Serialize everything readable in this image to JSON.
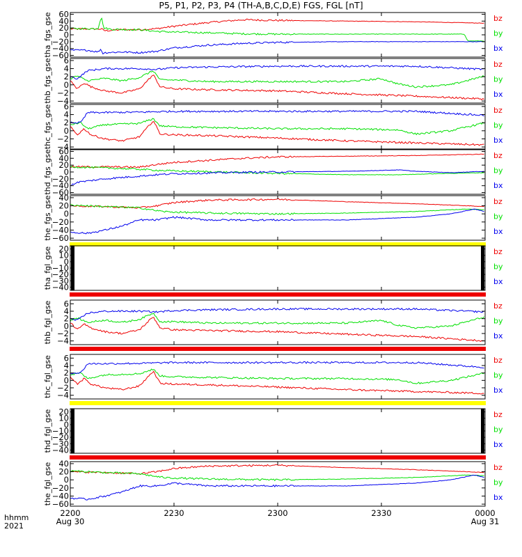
{
  "title": "P5, P1, P2, P3, P4 (TH-A,B,C,D,E) FGS, FGL [nT]",
  "x_axis": {
    "row_label_top": "hhmm",
    "row_label_bottom": "2021",
    "ticks": [
      {
        "t": 0,
        "label": "2200",
        "sub": "Aug 30"
      },
      {
        "t": 30,
        "label": "2230",
        "sub": ""
      },
      {
        "t": 60,
        "label": "2300",
        "sub": ""
      },
      {
        "t": 90,
        "label": "2330",
        "sub": ""
      },
      {
        "t": 120,
        "label": "0000",
        "sub": "Aug 31"
      }
    ],
    "range_minutes": [
      0,
      120
    ]
  },
  "colors": {
    "bx": "#0000ee",
    "by": "#00e000",
    "bz": "#ee0000",
    "flag_yellow": "#ffff00",
    "flag_red": "#ee0000",
    "frame": "#000000"
  },
  "chart_data": [
    {
      "type": "line",
      "panel": "tha_fgs_gse",
      "ylabel": "tha_fgs_gse",
      "ylim": [
        -65,
        65
      ],
      "yticks": [
        60,
        40,
        20,
        0,
        -20,
        -40,
        -60
      ],
      "legend": [
        "bz",
        "by",
        "bx"
      ],
      "flag": null,
      "x_end": 120,
      "series": [
        {
          "name": "bz",
          "x": [
            0,
            9,
            10,
            15,
            20,
            25,
            30,
            40,
            50,
            60,
            80,
            100,
            110,
            120
          ],
          "values": [
            17,
            17,
            12,
            15,
            15,
            18,
            25,
            36,
            44,
            42,
            40,
            38,
            36,
            34
          ]
        },
        {
          "name": "by",
          "x": [
            0,
            8,
            9,
            9.6,
            12,
            20,
            25,
            30,
            40,
            50,
            60,
            80,
            100,
            114,
            115,
            120
          ],
          "values": [
            18,
            18,
            55,
            20,
            16,
            15,
            10,
            8,
            6,
            3,
            2,
            2,
            2,
            2,
            -18,
            -18
          ]
        },
        {
          "name": "bx",
          "x": [
            0,
            5,
            8,
            9,
            9.2,
            10,
            15,
            20,
            25,
            30,
            40,
            50,
            60,
            80,
            100,
            115,
            120
          ],
          "values": [
            -45,
            -45,
            -50,
            -40,
            -55,
            -52,
            -50,
            -52,
            -48,
            -38,
            -30,
            -25,
            -22,
            -20,
            -20,
            -20,
            -20
          ]
        }
      ]
    },
    {
      "type": "line",
      "panel": "thb_fgs_gse",
      "ylabel": "thb_fgs_gse",
      "ylim": [
        -4.5,
        6.5
      ],
      "yticks": [
        6,
        4,
        2,
        0,
        -2,
        -4
      ],
      "legend": [
        "bz",
        "by",
        "bx"
      ],
      "flag": null,
      "x_end": 120,
      "series": [
        {
          "name": "bz",
          "x": [
            0,
            2,
            4,
            6,
            10,
            15,
            20,
            24,
            26,
            30,
            40,
            60,
            80,
            100,
            120
          ],
          "values": [
            1,
            -1,
            0.5,
            -0.5,
            -1.5,
            -2,
            -1,
            2.5,
            -0.5,
            -1,
            -1.2,
            -1.5,
            -2.2,
            -2.8,
            -3.5
          ]
        },
        {
          "name": "by",
          "x": [
            0,
            2,
            5,
            10,
            15,
            20,
            24,
            26,
            30,
            40,
            60,
            80,
            90,
            95,
            100,
            110,
            120
          ],
          "values": [
            1.5,
            2.2,
            1,
            1.6,
            1,
            1.8,
            3.5,
            1.2,
            1.2,
            0.8,
            0.8,
            0.8,
            1.5,
            0.2,
            -0.5,
            0,
            2.2
          ]
        },
        {
          "name": "bx",
          "x": [
            0,
            2,
            5,
            10,
            20,
            25,
            30,
            40,
            60,
            80,
            100,
            120
          ],
          "values": [
            2,
            1.5,
            3.5,
            4,
            4,
            3.8,
            4.2,
            4.4,
            4.6,
            4.6,
            4.6,
            3.8
          ]
        }
      ]
    },
    {
      "type": "line",
      "panel": "thc_fgs_gse",
      "ylabel": "thc_fgs_gse",
      "ylim": [
        -4.5,
        6.5
      ],
      "yticks": [
        6,
        4,
        2,
        0,
        -2,
        -4
      ],
      "legend": [
        "bz",
        "by",
        "bx"
      ],
      "flag": null,
      "x_end": 120,
      "series": [
        {
          "name": "bz",
          "x": [
            0,
            2,
            4,
            6,
            10,
            15,
            20,
            24,
            26,
            30,
            40,
            60,
            80,
            100,
            120
          ],
          "values": [
            1,
            -1,
            0.5,
            -1,
            -2,
            -2.5,
            -1.5,
            2.5,
            -0.8,
            -1,
            -1.2,
            -1.8,
            -2.5,
            -3,
            -3.5
          ]
        },
        {
          "name": "by",
          "x": [
            0,
            3,
            5,
            10,
            20,
            24,
            26,
            30,
            40,
            60,
            80,
            95,
            100,
            110,
            120
          ],
          "values": [
            1.5,
            2,
            0.5,
            1.5,
            1.8,
            3,
            1.2,
            1,
            0.8,
            0.5,
            0.5,
            0.2,
            -0.8,
            0,
            2
          ]
        },
        {
          "name": "bx",
          "x": [
            0,
            3,
            5,
            10,
            20,
            30,
            40,
            60,
            80,
            100,
            120
          ],
          "values": [
            2,
            2,
            4.5,
            4.5,
            4.6,
            4.8,
            4.8,
            4.8,
            4.8,
            4.8,
            3.8
          ]
        }
      ]
    },
    {
      "type": "line",
      "panel": "thd_fgs_gse",
      "ylabel": "thd_fgs_gse",
      "ylim": [
        -65,
        65
      ],
      "yticks": [
        60,
        40,
        20,
        0,
        -20,
        -40,
        -60
      ],
      "legend": [
        "bz",
        "by",
        "bx"
      ],
      "flag": null,
      "x_end": 120,
      "series": [
        {
          "name": "bz",
          "x": [
            0,
            10,
            20,
            25,
            30,
            40,
            50,
            60,
            80,
            100,
            120
          ],
          "values": [
            15,
            15,
            14,
            22,
            28,
            34,
            40,
            44,
            46,
            48,
            52
          ]
        },
        {
          "name": "by",
          "x": [
            0,
            10,
            20,
            25,
            30,
            40,
            50,
            60,
            80,
            95,
            110,
            120
          ],
          "values": [
            15,
            12,
            8,
            5,
            3,
            1,
            -2,
            -4,
            -8,
            -8,
            -4,
            -2
          ]
        },
        {
          "name": "bx",
          "x": [
            0,
            2,
            10,
            20,
            25,
            30,
            40,
            50,
            60,
            80,
            95,
            100,
            110,
            120
          ],
          "values": [
            -40,
            -30,
            -20,
            -12,
            -8,
            -5,
            -3,
            -1,
            0,
            2,
            6,
            2,
            -2,
            2
          ]
        }
      ]
    },
    {
      "type": "line",
      "panel": "the_fgs_gse",
      "ylabel": "the_fgs_gse",
      "ylim": [
        -65,
        45
      ],
      "yticks": [
        40,
        20,
        0,
        -20,
        -40,
        -60
      ],
      "legend": [
        "bz",
        "by",
        "bx"
      ],
      "flag": "yellow",
      "x_end": 120,
      "series": [
        {
          "name": "bz",
          "x": [
            0,
            10,
            20,
            25,
            30,
            40,
            60,
            80,
            100,
            115,
            120
          ],
          "values": [
            20,
            18,
            15,
            20,
            28,
            34,
            36,
            30,
            25,
            20,
            18
          ]
        },
        {
          "name": "by",
          "x": [
            0,
            10,
            20,
            25,
            28,
            40,
            60,
            80,
            100,
            115,
            120
          ],
          "values": [
            22,
            18,
            15,
            8,
            5,
            2,
            0,
            2,
            6,
            12,
            10
          ]
        },
        {
          "name": "bx",
          "x": [
            0,
            5,
            10,
            15,
            20,
            25,
            30,
            40,
            60,
            80,
            100,
            110,
            117,
            120
          ],
          "values": [
            -45,
            -48,
            -40,
            -30,
            -15,
            -15,
            -8,
            -15,
            -15,
            -15,
            -8,
            0,
            12,
            5
          ]
        }
      ]
    },
    {
      "type": "line",
      "panel": "tha_fgl_gse",
      "ylabel": "tha_fgl_gse",
      "ylim": [
        -45,
        25
      ],
      "yticks": [
        20,
        10,
        0,
        -10,
        -20,
        -30,
        -40
      ],
      "legend": [
        "bz",
        "by",
        "bx"
      ],
      "flag": "red",
      "x_end": 120,
      "series": []
    },
    {
      "type": "line",
      "panel": "thb_fgl_gse",
      "ylabel": "thb_fgl_gse",
      "ylim": [
        -5,
        7
      ],
      "yticks": [
        6,
        4,
        2,
        0,
        -2,
        -4
      ],
      "legend": [
        "bz",
        "by",
        "bx"
      ],
      "flag": "red",
      "x_end": 120,
      "series": [
        {
          "name": "bz",
          "x": [
            0,
            2,
            4,
            6,
            10,
            15,
            20,
            24,
            26,
            30,
            40,
            60,
            80,
            100,
            120
          ],
          "values": [
            1,
            -1,
            0.5,
            -0.5,
            -1.5,
            -2,
            -1,
            2.5,
            -0.5,
            -1,
            -1.2,
            -1.5,
            -2.2,
            -2.8,
            -4
          ]
        },
        {
          "name": "by",
          "x": [
            0,
            2,
            5,
            10,
            15,
            20,
            24,
            26,
            30,
            40,
            60,
            80,
            90,
            95,
            100,
            110,
            120
          ],
          "values": [
            1.5,
            2.2,
            1,
            1.6,
            1,
            1.8,
            3.5,
            1.2,
            1.2,
            0.8,
            0.8,
            0.8,
            1.5,
            0.2,
            -0.5,
            0,
            2.5
          ]
        },
        {
          "name": "bx",
          "x": [
            0,
            2,
            5,
            10,
            20,
            25,
            30,
            40,
            60,
            80,
            100,
            120
          ],
          "values": [
            2,
            1.5,
            3.5,
            4,
            4,
            3.8,
            4.2,
            4.4,
            4.6,
            4.6,
            4.6,
            3.8
          ]
        }
      ]
    },
    {
      "type": "line",
      "panel": "thc_fgl_gse",
      "ylabel": "thc_fgl_gse",
      "ylim": [
        -5,
        7
      ],
      "yticks": [
        6,
        4,
        2,
        0,
        -2,
        -4
      ],
      "legend": [
        "bz",
        "by",
        "bx"
      ],
      "flag": "yellow",
      "x_end": 120,
      "series": [
        {
          "name": "bz",
          "x": [
            0,
            2,
            4,
            6,
            10,
            15,
            20,
            24,
            26,
            30,
            40,
            60,
            80,
            100,
            120
          ],
          "values": [
            1,
            -1,
            0.5,
            -1,
            -2,
            -2.5,
            -1.5,
            2.5,
            -0.8,
            -1,
            -1.2,
            -1.8,
            -2.5,
            -3,
            -3.5
          ]
        },
        {
          "name": "by",
          "x": [
            0,
            3,
            5,
            10,
            20,
            24,
            26,
            30,
            40,
            60,
            80,
            95,
            100,
            110,
            120
          ],
          "values": [
            1.5,
            2,
            0.5,
            1.5,
            1.8,
            3,
            1.2,
            1,
            0.8,
            0.5,
            0.5,
            0.2,
            -0.8,
            0,
            2
          ]
        },
        {
          "name": "bx",
          "x": [
            0,
            3,
            5,
            10,
            20,
            30,
            40,
            60,
            80,
            100,
            120
          ],
          "values": [
            2,
            2,
            4.5,
            4.5,
            4.6,
            4.8,
            4.8,
            4.8,
            4.8,
            4.8,
            3.5
          ]
        }
      ]
    },
    {
      "type": "line",
      "panel": "thd_fgl_gse",
      "ylabel": "thd_fgl_gse",
      "ylim": [
        -45,
        25
      ],
      "yticks": [
        20,
        10,
        0,
        -10,
        -20,
        -30,
        -40
      ],
      "legend": [
        "bz",
        "by",
        "bx"
      ],
      "flag": "red",
      "x_end": 120,
      "series": []
    },
    {
      "type": "line",
      "panel": "the_fgl_gse",
      "ylabel": "the_fgl_gse",
      "ylim": [
        -65,
        45
      ],
      "yticks": [
        40,
        20,
        0,
        -20,
        -40,
        -60
      ],
      "legend": [
        "bz",
        "by",
        "bx"
      ],
      "flag": null,
      "x_end": 120,
      "series": [
        {
          "name": "bz",
          "x": [
            0,
            10,
            20,
            25,
            30,
            40,
            60,
            80,
            100,
            115,
            120
          ],
          "values": [
            20,
            18,
            15,
            20,
            28,
            34,
            36,
            30,
            25,
            20,
            18
          ]
        },
        {
          "name": "by",
          "x": [
            0,
            10,
            20,
            25,
            28,
            40,
            60,
            80,
            100,
            115,
            120
          ],
          "values": [
            22,
            18,
            15,
            8,
            5,
            2,
            0,
            2,
            6,
            12,
            10
          ]
        },
        {
          "name": "bx",
          "x": [
            0,
            5,
            10,
            15,
            20,
            25,
            30,
            40,
            60,
            80,
            100,
            110,
            117,
            120
          ],
          "values": [
            -45,
            -48,
            -40,
            -30,
            -15,
            -15,
            -8,
            -15,
            -15,
            -15,
            -8,
            0,
            12,
            5
          ]
        }
      ]
    }
  ]
}
